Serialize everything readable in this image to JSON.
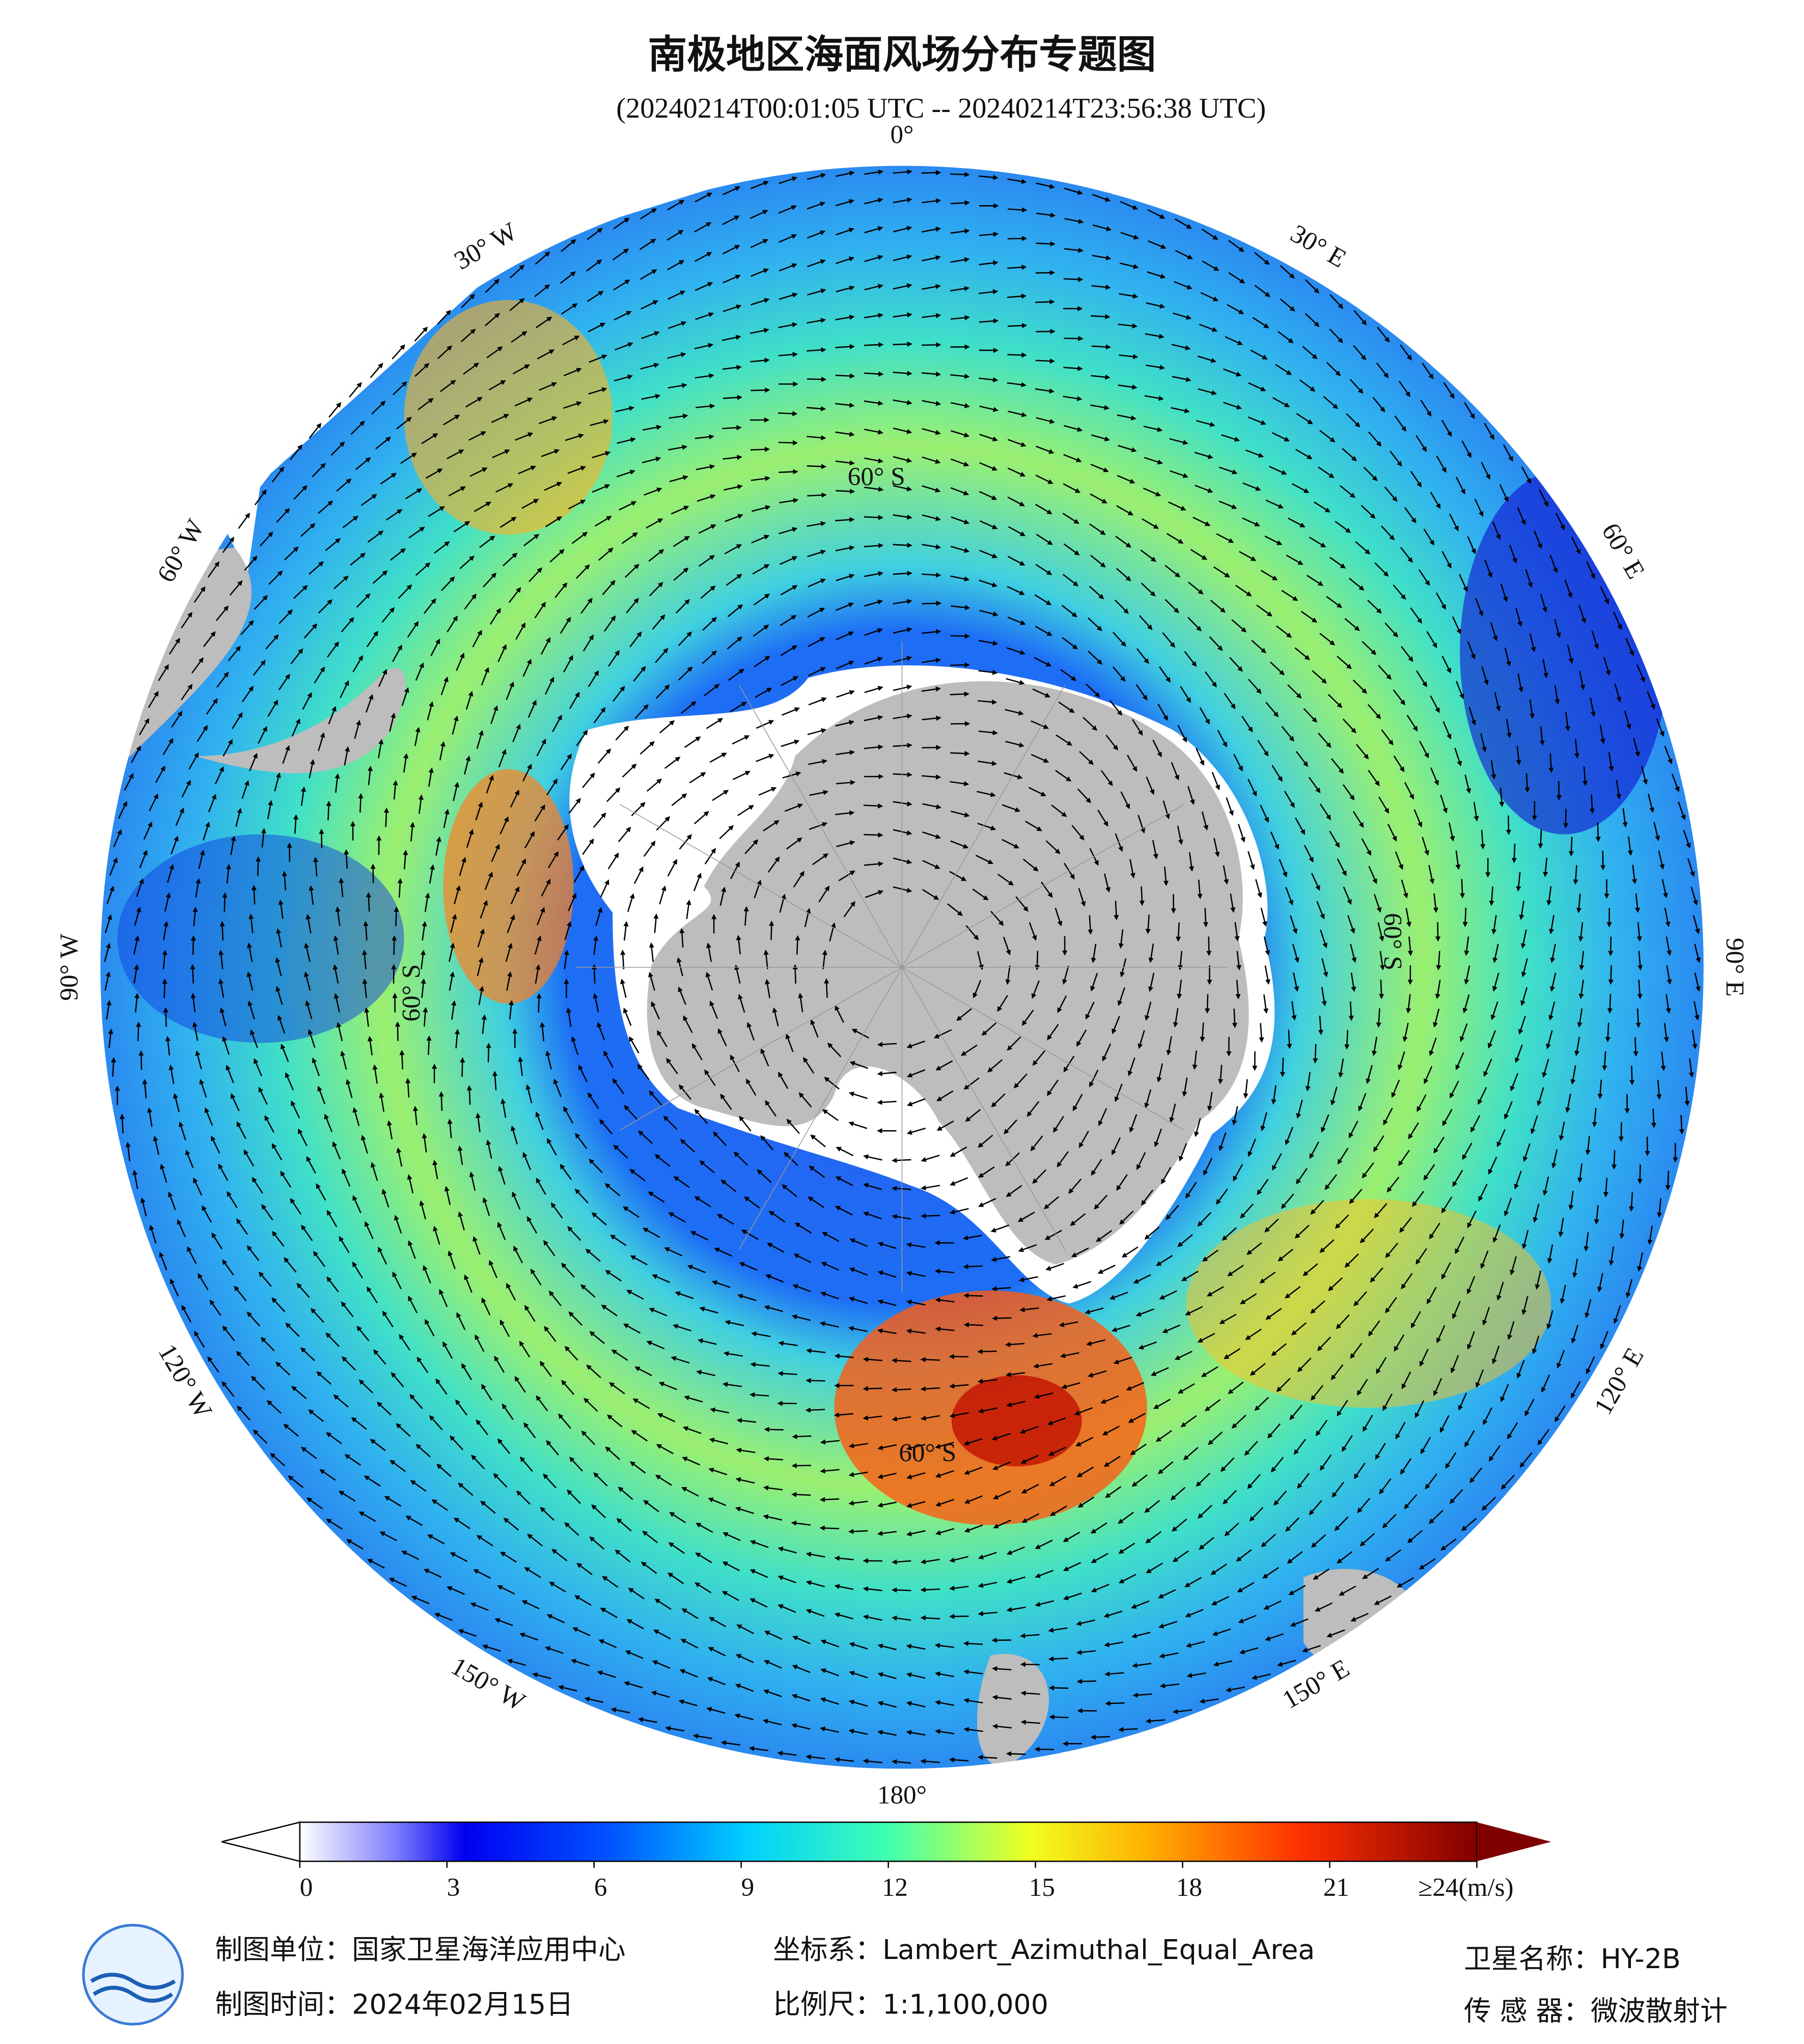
{
  "header": {
    "title": "南极地区海面风场分布专题图",
    "subtitle": "(20240214T00:01:05 UTC -- 20240214T23:56:38 UTC)"
  },
  "map": {
    "lon_ticks": [
      {
        "value": 0,
        "label": "0°"
      },
      {
        "value": 30,
        "label": "30° E"
      },
      {
        "value": 60,
        "label": "60° E"
      },
      {
        "value": 90,
        "label": "90° E"
      },
      {
        "value": 120,
        "label": "120° E"
      },
      {
        "value": 150,
        "label": "150° E"
      },
      {
        "value": 180,
        "label": "180°"
      },
      {
        "value": -150,
        "label": "150° W"
      },
      {
        "value": -120,
        "label": "120° W"
      },
      {
        "value": -90,
        "label": "90° W"
      },
      {
        "value": -60,
        "label": "60° W"
      },
      {
        "value": -30,
        "label": "30° W"
      }
    ],
    "lat_label": "60° S"
  },
  "colorbar": {
    "lim": [
      0,
      24
    ],
    "ticks": [
      0,
      3,
      6,
      9,
      12,
      15,
      18,
      21,
      {
        "value": 24,
        "label": "≥24(m/s)"
      }
    ]
  },
  "footer": {
    "unit": "制图单位：国家卫星海洋应用中心",
    "date": "制图时间：2024年02月15日",
    "crs": "坐标系：Lambert_Azimuthal_Equal_Area",
    "scale": "比例尺：1:1,100,000",
    "satellite": "卫星名称：HY-2B",
    "sensor": "传 感 器：微波散射计"
  }
}
